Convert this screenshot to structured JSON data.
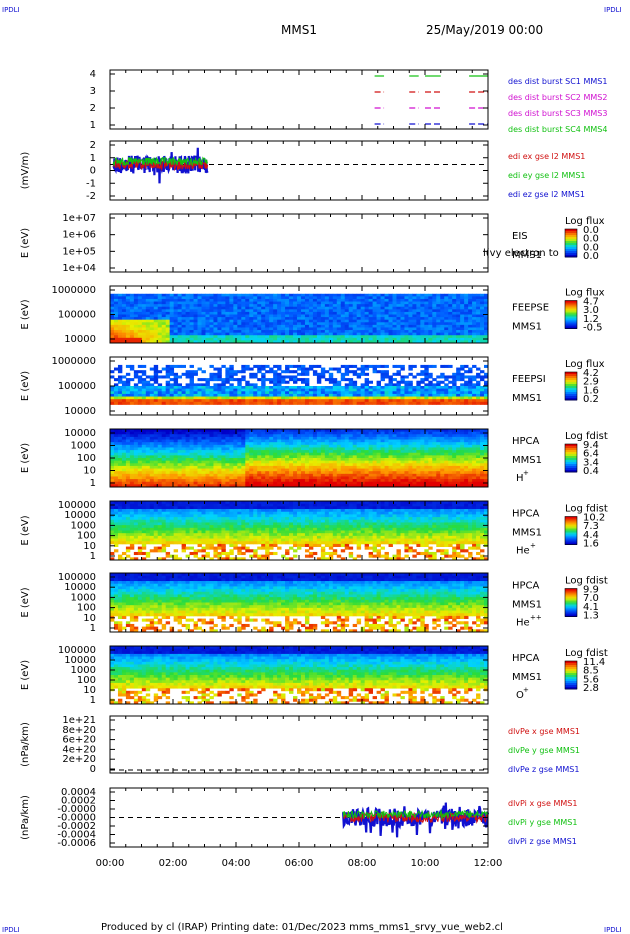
{
  "corner_logo": "IPDLI",
  "header": {
    "mission": "MMS1",
    "datetime": "25/May/2019 00:00"
  },
  "footer": "Produced by cl (IRAP)    Printing date: 01/Dec/2023    mms_mms1_srvy_vue_web2.cl",
  "chart_data": {
    "type": "multi-panel-timeseries",
    "x": {
      "ticks": [
        "00:00",
        "02:00",
        "04:00",
        "06:00",
        "08:00",
        "10:00",
        "12:00"
      ],
      "range_hours": [
        0,
        12
      ]
    },
    "colors": {
      "blue": "#1010d0",
      "red": "#d01010",
      "green": "#10c010",
      "magenta": "#d010d0"
    },
    "panels": [
      {
        "kind": "burst",
        "ylabel": "",
        "yticks": [
          "4",
          "3",
          "2",
          "1"
        ],
        "legend": [
          {
            "text": "des dist burst SC1 MMS1",
            "color": "#1010d0"
          },
          {
            "text": "des dist burst SC2 MMS2",
            "color": "#d010d0"
          },
          {
            "text": "des dist burst SC3 MMS3",
            "color": "#d010d0"
          },
          {
            "text": "des dist burst SC4 MMS4",
            "color": "#10c010"
          }
        ],
        "bursts_hours": [
          [
            8.4,
            8.7
          ],
          [
            9.5,
            9.8
          ],
          [
            10.0,
            10.5
          ],
          [
            11.4,
            12.0
          ]
        ]
      },
      {
        "kind": "line",
        "ylabel": "(mV/m)",
        "yticks": [
          "2",
          "1",
          "0",
          "-1",
          "-2"
        ],
        "legend": [
          {
            "text": "edi ex gse l2 MMS1",
            "color": "#d01010"
          },
          {
            "text": "edi ey gse l2 MMS1",
            "color": "#10c010"
          },
          {
            "text": "edi ez gse l2 MMS1",
            "color": "#1010d0"
          }
        ],
        "data_hours": [
          0.1,
          3.1
        ]
      },
      {
        "kind": "spectro",
        "ylabel": "E (eV)",
        "yticks": [
          "1e+07",
          "1e+06",
          "1e+05",
          "1e+04"
        ],
        "labels": [
          "EIS",
          "MMS1"
        ],
        "overlay": "l(vy electron to",
        "cb_title": "Log flux",
        "cb_ticks": [
          "0.0",
          "0.0",
          "0.0",
          "0.0"
        ]
      },
      {
        "kind": "spectro",
        "ylabel": "E (eV)",
        "yticks": [
          "1000000",
          "100000",
          "10000"
        ],
        "labels": [
          "FEEPSE",
          "MMS1"
        ],
        "cb_title": "Log flux",
        "cb_ticks": [
          "4.7",
          "3.0",
          "1.2",
          "-0.5"
        ]
      },
      {
        "kind": "spectro",
        "ylabel": "E (eV)",
        "yticks": [
          "1000000",
          "100000",
          "10000"
        ],
        "labels": [
          "FEEPSI",
          "MMS1"
        ],
        "cb_title": "Log flux",
        "cb_ticks": [
          "4.2",
          "2.9",
          "1.6",
          "0.2"
        ]
      },
      {
        "kind": "spectro",
        "ylabel": "E (eV)",
        "yticks": [
          "10000",
          "1000",
          "100",
          "10",
          "1"
        ],
        "labels": [
          "HPCA",
          "MMS1"
        ],
        "species": "H",
        "sup": "+",
        "cb_title": "Log fdist",
        "cb_ticks": [
          "9.4",
          "6.4",
          "3.4",
          "0.4"
        ]
      },
      {
        "kind": "spectro",
        "ylabel": "E (eV)",
        "yticks": [
          "100000",
          "10000",
          "1000",
          "100",
          "10",
          "1"
        ],
        "labels": [
          "HPCA",
          "MMS1"
        ],
        "species": "He",
        "sup": "+",
        "cb_title": "Log fdist",
        "cb_ticks": [
          "10.2",
          "7.3",
          "4.4",
          "1.6"
        ]
      },
      {
        "kind": "spectro",
        "ylabel": "E (eV)",
        "yticks": [
          "100000",
          "10000",
          "1000",
          "100",
          "10",
          "1"
        ],
        "labels": [
          "HPCA",
          "MMS1"
        ],
        "species": "He",
        "sup": "++",
        "cb_title": "Log fdist",
        "cb_ticks": [
          "9.9",
          "7.0",
          "4.1",
          "1.3"
        ]
      },
      {
        "kind": "spectro",
        "ylabel": "E (eV)",
        "yticks": [
          "100000",
          "10000",
          "1000",
          "100",
          "10",
          "1"
        ],
        "labels": [
          "HPCA",
          "MMS1"
        ],
        "species": "O",
        "sup": "+",
        "cb_title": "Log fdist",
        "cb_ticks": [
          "11.4",
          "8.5",
          "5.6",
          "2.8"
        ]
      },
      {
        "kind": "line",
        "ylabel": "(nPa/km)",
        "yticks": [
          "1e+21",
          "8e+20",
          "6e+20",
          "4e+20",
          "2e+20",
          "0"
        ],
        "legend": [
          {
            "text": "dlvPe x gse MMS1",
            "color": "#d01010"
          },
          {
            "text": "dlvPe y gse MMS1",
            "color": "#10c010"
          },
          {
            "text": "dlvPe z gse MMS1",
            "color": "#1010d0"
          }
        ]
      },
      {
        "kind": "line",
        "ylabel": "(nPa/km)",
        "yticks": [
          "0.0004",
          "0.0002",
          "-0.0000",
          "-0.0000",
          "-0.0002",
          "-0.0004",
          "-0.0006"
        ],
        "legend": [
          {
            "text": "dlvPi x gse MMS1",
            "color": "#d01010"
          },
          {
            "text": "dlvPi y gse MMS1",
            "color": "#10c010"
          },
          {
            "text": "dlvPi z gse MMS1",
            "color": "#1010d0"
          }
        ],
        "data_hours": [
          7.4,
          12.0
        ]
      }
    ]
  }
}
